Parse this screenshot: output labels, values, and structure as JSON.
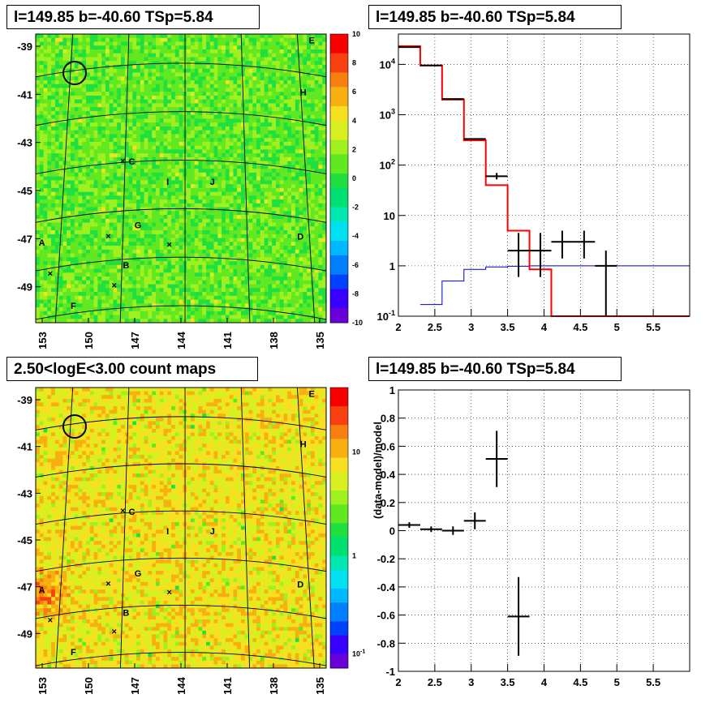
{
  "panels": {
    "top_left_title": "l=149.85 b=-40.60 TSp=5.84",
    "top_right_title": "l=149.85 b=-40.60 TSp=5.84",
    "bottom_left_title": "2.50<logE<3.00 count maps",
    "bottom_right_title": "l=149.85 b=-40.60 TSp=5.84"
  },
  "colors": {
    "data": "#000000",
    "model": "#ff0000",
    "source": "#0000cc"
  },
  "chart_data": [
    {
      "type": "heatmap",
      "title": "l=149.85 b=-40.60 TSp=5.84",
      "xticks": [
        "153",
        "150",
        "147",
        "144",
        "141",
        "138",
        "135"
      ],
      "yticks": [
        "-39",
        "-41",
        "-43",
        "-45",
        "-47",
        "-49"
      ],
      "colorbar_ticks": [
        "10",
        "8",
        "6",
        "4",
        "2",
        "0",
        "-2",
        "-4",
        "-6",
        "-8",
        "-10"
      ],
      "xlim": [
        153,
        135
      ],
      "ylim": [
        -50.5,
        -38.5
      ],
      "zlim": [
        -10,
        10
      ],
      "source_labels": [
        "E",
        "H",
        "C",
        "I",
        "J",
        "G",
        "D",
        "A",
        "B",
        "F"
      ]
    },
    {
      "type": "line",
      "title": "l=149.85 b=-40.60 TSp=5.84",
      "log_y": true,
      "xlim": [
        2,
        6
      ],
      "ylim": [
        0.1,
        40000
      ],
      "xticks": [
        "2",
        "2.5",
        "3",
        "3.5",
        "4",
        "4.5",
        "5",
        "5.5"
      ],
      "yticks": [
        "10^-1",
        "1",
        "10",
        "10^2",
        "10^3",
        "10^4"
      ],
      "series": [
        {
          "edges": [
            2,
            2.3,
            2.6,
            2.9,
            3.2,
            3.5,
            3.8,
            4.1,
            4.4,
            4.7,
            5.0,
            6.0
          ],
          "values": [
            23000,
            9500,
            2000,
            310,
            40,
            5,
            0.85,
            0.1,
            0.1,
            0.1,
            0.1
          ]
        },
        {
          "edges": [
            2.3,
            2.6,
            2.9,
            3.2,
            3.5,
            3.8,
            4.1,
            4.4,
            4.7,
            5.0,
            6.0
          ],
          "values": [
            0.17,
            0.5,
            0.85,
            0.95,
            0.98,
            1,
            1,
            1,
            1,
            1
          ]
        },
        {
          "points": [
            {
              "x": 2.15,
              "y": 22000,
              "xerr": 0.15
            },
            {
              "x": 2.45,
              "y": 9500,
              "xerr": 0.15
            },
            {
              "x": 2.75,
              "y": 2050,
              "xerr": 0.15
            },
            {
              "x": 3.05,
              "y": 330,
              "xerr": 0.15
            },
            {
              "x": 3.35,
              "y": 60,
              "xerr": 0.15,
              "ylo": 52,
              "yhi": 70
            },
            {
              "x": 3.65,
              "y": 2,
              "xerr": 0.15,
              "ylo": 0.6,
              "yhi": 4.5
            },
            {
              "x": 3.95,
              "y": 2,
              "xerr": 0.15,
              "ylo": 0.6,
              "yhi": 4.5
            },
            {
              "x": 4.25,
              "y": 3,
              "xerr": 0.15,
              "ylo": 1.4,
              "yhi": 5
            },
            {
              "x": 4.55,
              "y": 3,
              "xerr": 0.15,
              "ylo": 1.4,
              "yhi": 5
            },
            {
              "x": 4.85,
              "y": 1,
              "xerr": 0.15,
              "ylo": 0.1,
              "yhi": 2
            }
          ]
        }
      ]
    },
    {
      "type": "heatmap",
      "title": "2.50<logE<3.00 count maps",
      "xticks": [
        "153",
        "150",
        "147",
        "144",
        "141",
        "138",
        "135"
      ],
      "yticks": [
        "-39",
        "-41",
        "-43",
        "-45",
        "-47",
        "-49"
      ],
      "colorbar_ticks": [
        "10",
        "1",
        "10^-1"
      ],
      "log_z": true,
      "source_labels": [
        "E",
        "H",
        "C",
        "I",
        "J",
        "G",
        "D",
        "A",
        "B",
        "F"
      ]
    },
    {
      "type": "scatter",
      "title": "l=149.85 b=-40.60 TSp=5.84",
      "ylabel": "(data-model)/model",
      "xlim": [
        2,
        6
      ],
      "ylim": [
        -1,
        1
      ],
      "xticks": [
        "2",
        "2.5",
        "3",
        "3.5",
        "4",
        "4.5",
        "5",
        "5.5"
      ],
      "yticks": [
        "1",
        "0.8",
        "0.6",
        "0.4",
        "0.2",
        "0",
        "-0.2",
        "-0.4",
        "-0.6",
        "-0.8",
        "-1"
      ],
      "points": [
        {
          "x": 2.15,
          "y": 0.04,
          "xerr": 0.15,
          "yerr": 0.02
        },
        {
          "x": 2.45,
          "y": 0.01,
          "xerr": 0.15,
          "yerr": 0.02
        },
        {
          "x": 2.75,
          "y": 0.0,
          "xerr": 0.15,
          "yerr": 0.03
        },
        {
          "x": 3.05,
          "y": 0.07,
          "xerr": 0.15,
          "yerr": 0.06
        },
        {
          "x": 3.35,
          "y": 0.51,
          "xerr": 0.15,
          "yerr": 0.2
        },
        {
          "x": 3.65,
          "y": -0.61,
          "xerr": 0.15,
          "yerr": 0.28
        }
      ]
    }
  ]
}
